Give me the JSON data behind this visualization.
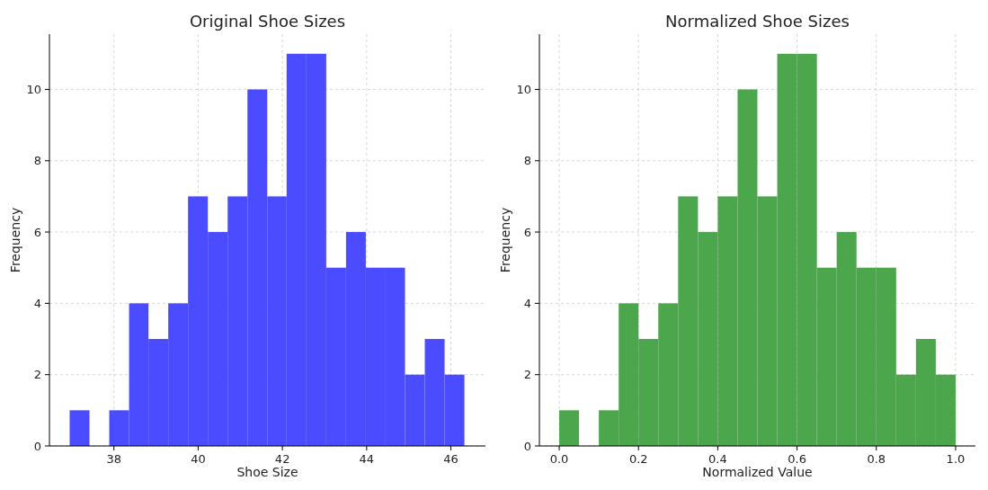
{
  "chart_data": [
    {
      "type": "histogram",
      "title": "Original Shoe Sizes",
      "xlabel": "Shoe Size",
      "ylabel": "Frequency",
      "bins": [
        36.95,
        37.42,
        37.89,
        38.36,
        38.82,
        39.29,
        39.76,
        40.23,
        40.7,
        41.17,
        41.64,
        42.1,
        42.57,
        43.04,
        43.51,
        43.98,
        44.45,
        44.91,
        45.38,
        45.85,
        46.32
      ],
      "values": [
        1,
        0,
        1,
        4,
        3,
        4,
        7,
        6,
        7,
        10,
        7,
        11,
        11,
        5,
        6,
        5,
        5,
        2,
        3,
        2
      ],
      "color": "#4b4bff",
      "xlim": [
        36.47,
        46.82
      ],
      "xticks": [
        38,
        40,
        42,
        44,
        46
      ],
      "ylim": [
        0,
        11.55
      ],
      "yticks": [
        0,
        2,
        4,
        6,
        8,
        10
      ],
      "grid": true
    },
    {
      "type": "histogram",
      "title": "Normalized Shoe Sizes",
      "xlabel": "Normalized Value",
      "ylabel": "Frequency",
      "bins": [
        0,
        0.05,
        0.1,
        0.15,
        0.2,
        0.25,
        0.3,
        0.35,
        0.4,
        0.45,
        0.5,
        0.55,
        0.6,
        0.65,
        0.7,
        0.75,
        0.8,
        0.85,
        0.9,
        0.95,
        1
      ],
      "values": [
        1,
        0,
        1,
        4,
        3,
        4,
        7,
        6,
        7,
        10,
        7,
        11,
        11,
        5,
        6,
        5,
        5,
        2,
        3,
        2
      ],
      "color": "#4ca64c",
      "xlim": [
        -0.05,
        1.05
      ],
      "xticks": [
        {
          "value": 0,
          "label": "0.0"
        },
        {
          "value": 0.2,
          "label": "0.2"
        },
        {
          "value": 0.4,
          "label": "0.4"
        },
        {
          "value": 0.6,
          "label": "0.6"
        },
        {
          "value": 0.8,
          "label": "0.8"
        },
        {
          "value": 1,
          "label": "1.0"
        }
      ],
      "ylim": [
        0,
        11.55
      ],
      "yticks": [
        0,
        2,
        4,
        6,
        8,
        10
      ],
      "grid": true
    }
  ]
}
